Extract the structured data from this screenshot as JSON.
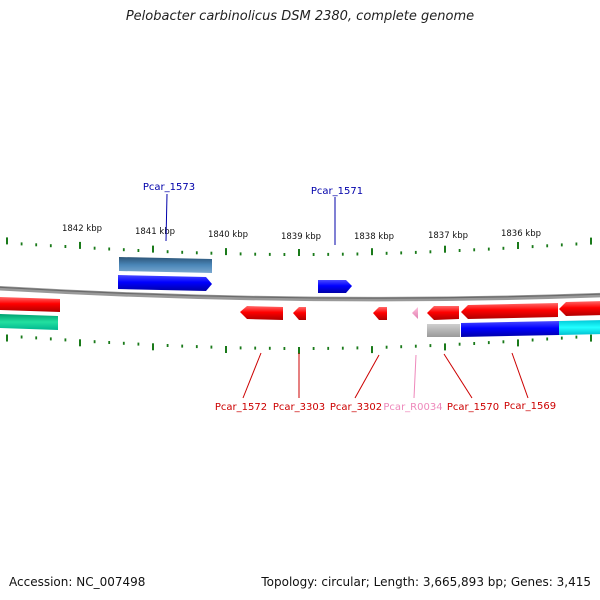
{
  "title": "Pelobacter carbinolicus DSM 2380, complete genome",
  "ruler_ticks": [
    "1842 kbp",
    "1841 kbp",
    "1840 kbp",
    "1839 kbp",
    "1838 kbp",
    "1837 kbp",
    "1836 kbp"
  ],
  "genes_forward": [
    {
      "label": "Pcar_1573",
      "color": "#0000cc"
    },
    {
      "label": "Pcar_1571",
      "color": "#0000cc"
    }
  ],
  "genes_reverse": [
    {
      "label": "Pcar_1572",
      "color": "#cc0000"
    },
    {
      "label": "Pcar_3303",
      "color": "#cc0000"
    },
    {
      "label": "Pcar_3302",
      "color": "#cc0000"
    },
    {
      "label": "Pcar_R0034",
      "color": "#e07ab0"
    },
    {
      "label": "Pcar_1570",
      "color": "#cc0000"
    },
    {
      "label": "Pcar_1569",
      "color": "#cc0000"
    }
  ],
  "footer": {
    "accession": "Accession: NC_007498",
    "summary": "Topology: circular; Length: 3,665,893 bp; Genes: 3,415"
  },
  "colors": {
    "cds_forward": "#0000ff",
    "cds_reverse": "#ff0000",
    "rna": "#ff99cc",
    "backbone": "#888888",
    "tick": "#1a7a1a"
  }
}
